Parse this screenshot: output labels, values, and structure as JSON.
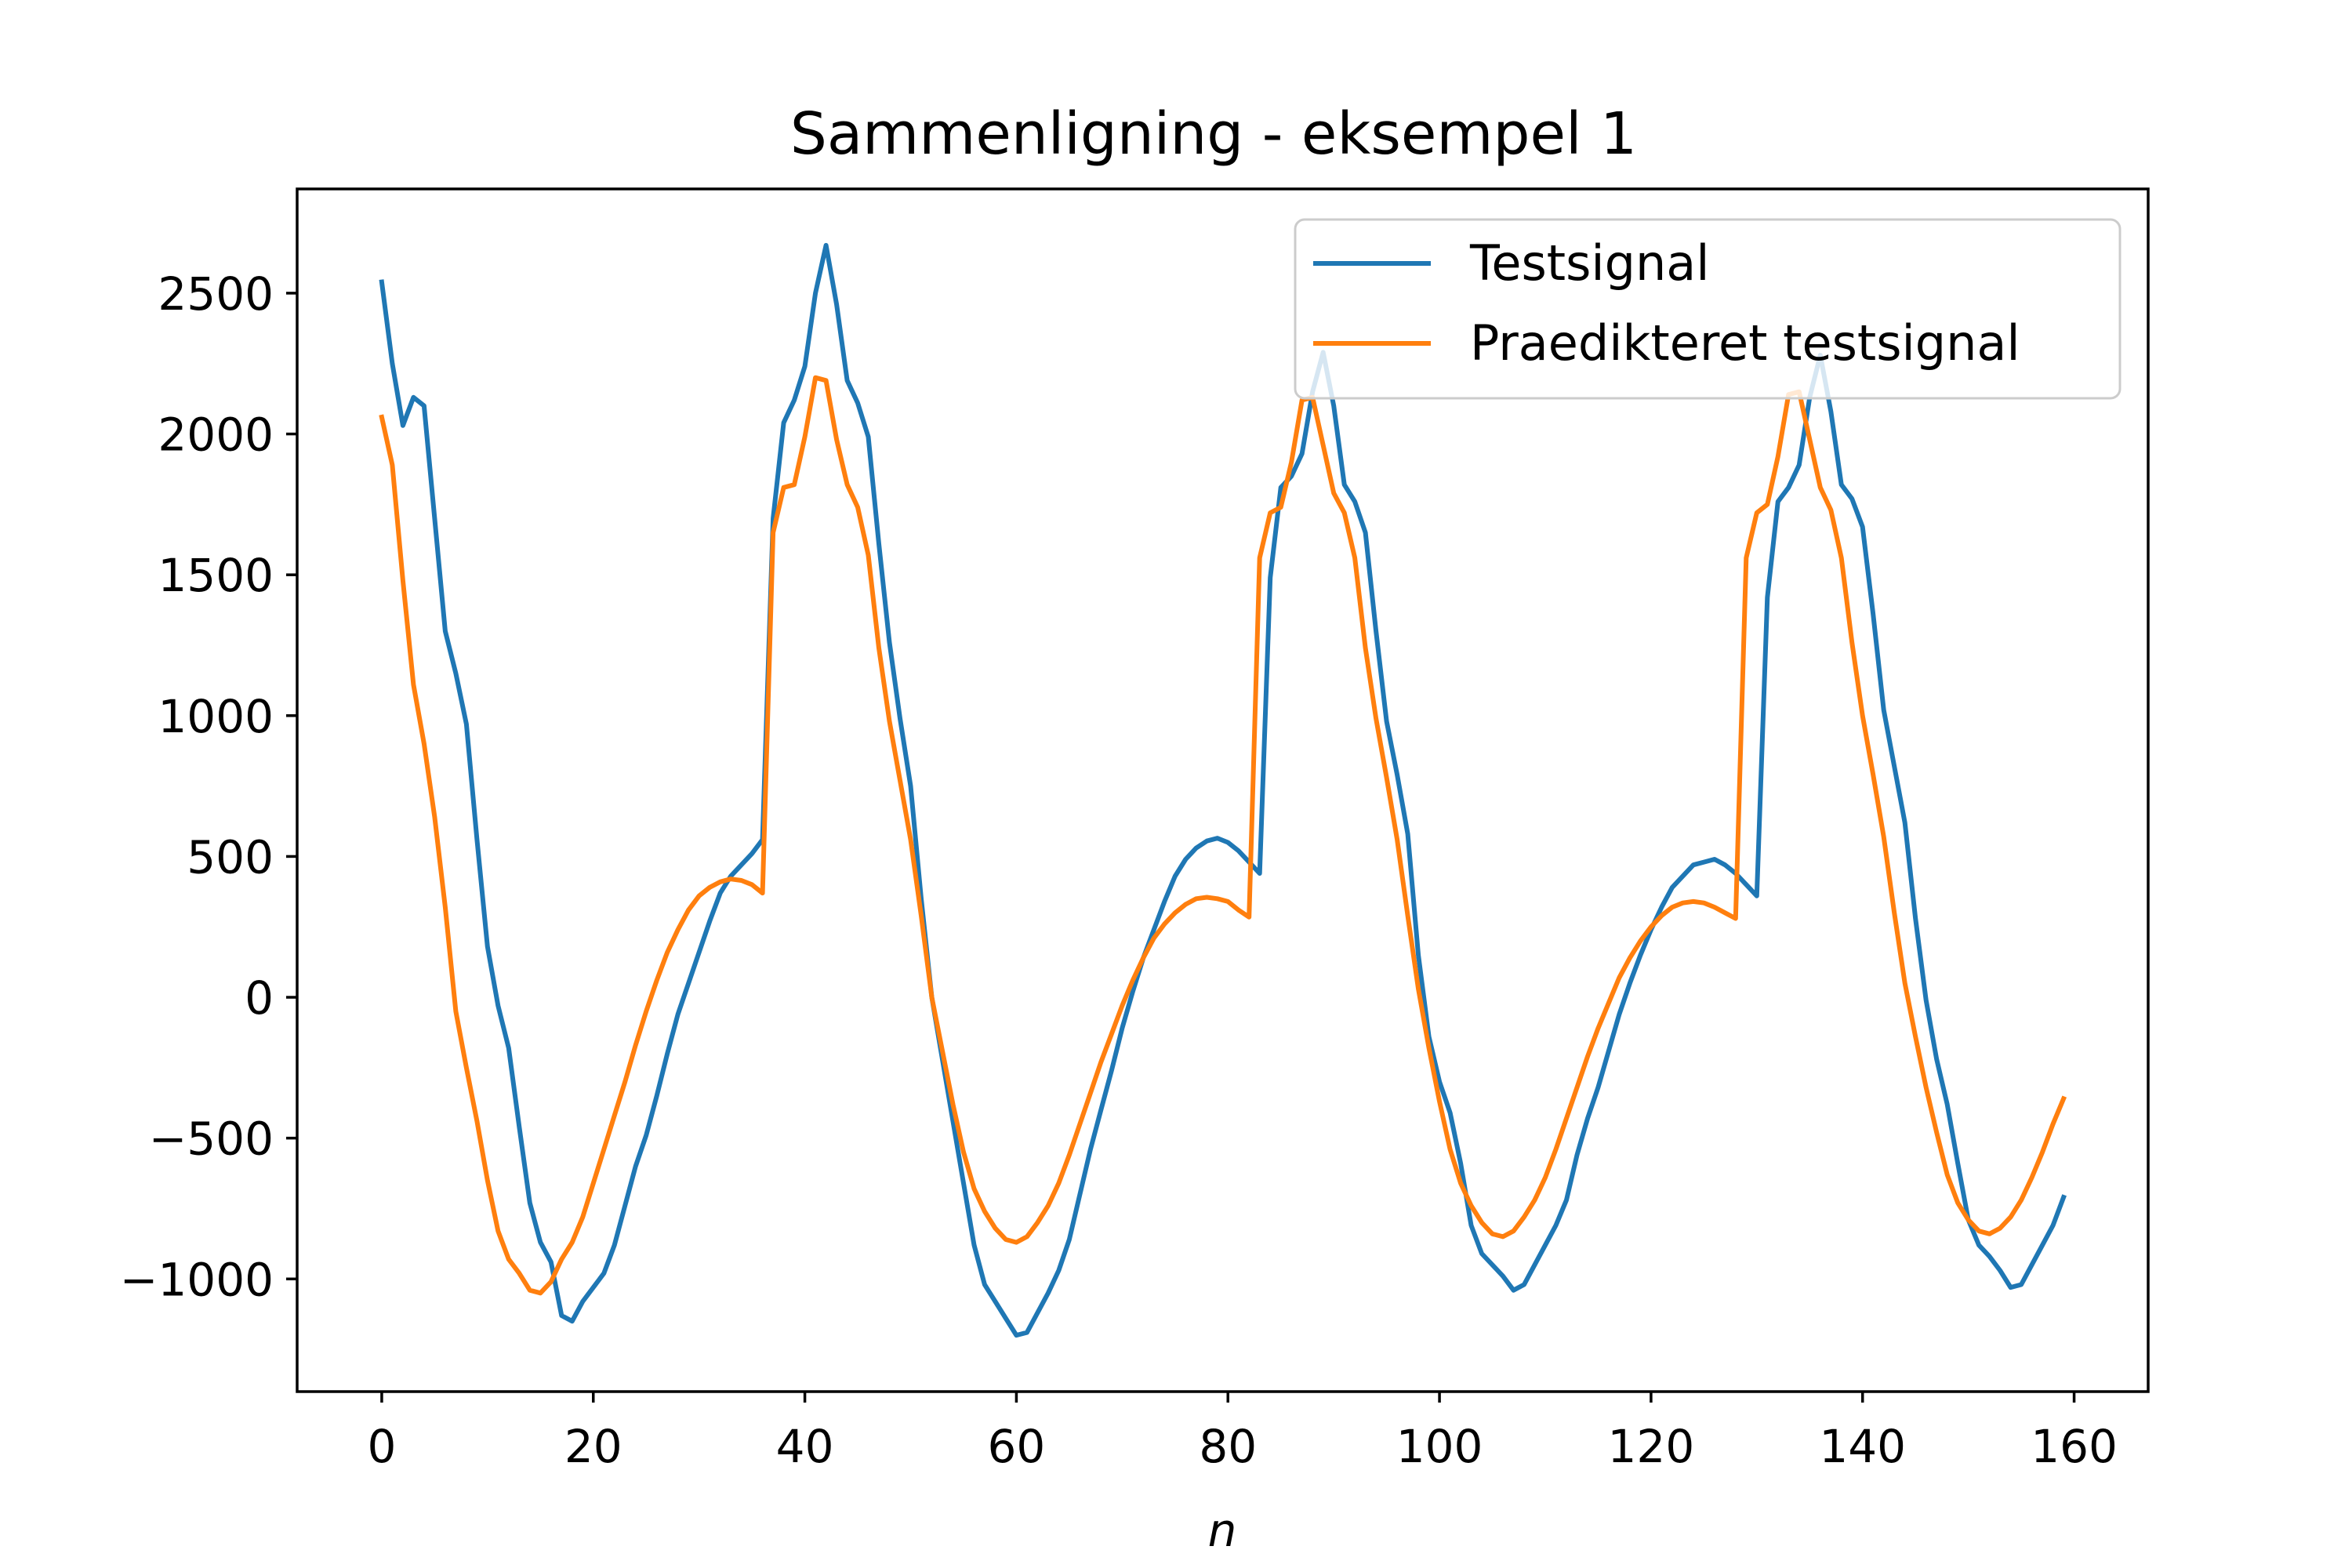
{
  "chart_data": {
    "type": "line",
    "title": "Sammenligning - eksempel 1",
    "xlabel": "n",
    "ylabel": "",
    "xlim": [
      -8,
      167
    ],
    "ylim": [
      -1400,
      2870
    ],
    "xticks": [
      0,
      20,
      40,
      60,
      80,
      100,
      120,
      140,
      160
    ],
    "yticks": [
      -1000,
      -500,
      0,
      500,
      1000,
      1500,
      2000,
      2500
    ],
    "legend": "upper-right",
    "series": [
      {
        "name": "Testsignal",
        "color": "#1f77b4",
        "points": [
          [
            0,
            2540
          ],
          [
            1,
            2250
          ],
          [
            2,
            2030
          ],
          [
            3,
            2130
          ],
          [
            4,
            2100
          ],
          [
            5,
            1700
          ],
          [
            6,
            1300
          ],
          [
            7,
            1150
          ],
          [
            8,
            970
          ],
          [
            9,
            560
          ],
          [
            10,
            180
          ],
          [
            11,
            -30
          ],
          [
            12,
            -180
          ],
          [
            13,
            -460
          ],
          [
            14,
            -730
          ],
          [
            15,
            -870
          ],
          [
            16,
            -940
          ],
          [
            17,
            -1130
          ],
          [
            18,
            -1150
          ],
          [
            19,
            -1080
          ],
          [
            20,
            -1030
          ],
          [
            21,
            -980
          ],
          [
            22,
            -880
          ],
          [
            23,
            -740
          ],
          [
            24,
            -600
          ],
          [
            25,
            -490
          ],
          [
            26,
            -350
          ],
          [
            27,
            -200
          ],
          [
            28,
            -60
          ],
          [
            29,
            50
          ],
          [
            30,
            160
          ],
          [
            31,
            270
          ],
          [
            32,
            370
          ],
          [
            33,
            430
          ],
          [
            34,
            470
          ],
          [
            35,
            510
          ],
          [
            36,
            560
          ],
          [
            37,
            1700
          ],
          [
            38,
            2040
          ],
          [
            39,
            2120
          ],
          [
            40,
            2240
          ],
          [
            41,
            2500
          ],
          [
            42,
            2670
          ],
          [
            43,
            2460
          ],
          [
            44,
            2190
          ],
          [
            45,
            2110
          ],
          [
            46,
            1990
          ],
          [
            47,
            1610
          ],
          [
            48,
            1260
          ],
          [
            49,
            990
          ],
          [
            50,
            750
          ],
          [
            51,
            350
          ],
          [
            52,
            0
          ],
          [
            53,
            -220
          ],
          [
            54,
            -440
          ],
          [
            55,
            -660
          ],
          [
            56,
            -880
          ],
          [
            57,
            -1020
          ],
          [
            58,
            -1080
          ],
          [
            59,
            -1140
          ],
          [
            60,
            -1200
          ],
          [
            61,
            -1190
          ],
          [
            62,
            -1120
          ],
          [
            63,
            -1050
          ],
          [
            64,
            -970
          ],
          [
            65,
            -860
          ],
          [
            66,
            -700
          ],
          [
            67,
            -540
          ],
          [
            68,
            -400
          ],
          [
            69,
            -260
          ],
          [
            70,
            -110
          ],
          [
            71,
            20
          ],
          [
            72,
            140
          ],
          [
            73,
            240
          ],
          [
            74,
            340
          ],
          [
            75,
            430
          ],
          [
            76,
            490
          ],
          [
            77,
            530
          ],
          [
            78,
            555
          ],
          [
            79,
            565
          ],
          [
            80,
            550
          ],
          [
            81,
            520
          ],
          [
            82,
            480
          ],
          [
            83,
            440
          ],
          [
            84,
            1490
          ],
          [
            85,
            1810
          ],
          [
            86,
            1850
          ],
          [
            87,
            1930
          ],
          [
            88,
            2150
          ],
          [
            89,
            2290
          ],
          [
            90,
            2100
          ],
          [
            91,
            1820
          ],
          [
            92,
            1760
          ],
          [
            93,
            1650
          ],
          [
            94,
            1300
          ],
          [
            95,
            980
          ],
          [
            96,
            790
          ],
          [
            97,
            580
          ],
          [
            98,
            150
          ],
          [
            99,
            -140
          ],
          [
            100,
            -300
          ],
          [
            101,
            -410
          ],
          [
            102,
            -590
          ],
          [
            103,
            -810
          ],
          [
            104,
            -910
          ],
          [
            105,
            -950
          ],
          [
            106,
            -990
          ],
          [
            107,
            -1040
          ],
          [
            108,
            -1020
          ],
          [
            109,
            -950
          ],
          [
            110,
            -880
          ],
          [
            111,
            -810
          ],
          [
            112,
            -720
          ],
          [
            113,
            -560
          ],
          [
            114,
            -430
          ],
          [
            115,
            -320
          ],
          [
            116,
            -190
          ],
          [
            117,
            -60
          ],
          [
            118,
            50
          ],
          [
            119,
            150
          ],
          [
            120,
            240
          ],
          [
            121,
            320
          ],
          [
            122,
            390
          ],
          [
            123,
            430
          ],
          [
            124,
            470
          ],
          [
            125,
            480
          ],
          [
            126,
            490
          ],
          [
            127,
            470
          ],
          [
            128,
            440
          ],
          [
            129,
            400
          ],
          [
            130,
            360
          ],
          [
            131,
            1420
          ],
          [
            132,
            1760
          ],
          [
            133,
            1810
          ],
          [
            134,
            1890
          ],
          [
            135,
            2130
          ],
          [
            136,
            2280
          ],
          [
            137,
            2080
          ],
          [
            138,
            1820
          ],
          [
            139,
            1770
          ],
          [
            140,
            1670
          ],
          [
            141,
            1360
          ],
          [
            142,
            1020
          ],
          [
            143,
            820
          ],
          [
            144,
            620
          ],
          [
            145,
            280
          ],
          [
            146,
            -10
          ],
          [
            147,
            -220
          ],
          [
            148,
            -380
          ],
          [
            149,
            -590
          ],
          [
            150,
            -790
          ],
          [
            151,
            -880
          ],
          [
            152,
            -920
          ],
          [
            153,
            -970
          ],
          [
            154,
            -1030
          ],
          [
            155,
            -1020
          ],
          [
            156,
            -950
          ],
          [
            157,
            -880
          ],
          [
            158,
            -810
          ],
          [
            159,
            -710
          ]
        ]
      },
      {
        "name": "Praedikteret testsignal",
        "color": "#ff7f0e",
        "points": [
          [
            0,
            2060
          ],
          [
            1,
            1890
          ],
          [
            2,
            1480
          ],
          [
            3,
            1110
          ],
          [
            4,
            900
          ],
          [
            5,
            640
          ],
          [
            6,
            320
          ],
          [
            7,
            -50
          ],
          [
            8,
            -250
          ],
          [
            9,
            -440
          ],
          [
            10,
            -650
          ],
          [
            11,
            -830
          ],
          [
            12,
            -930
          ],
          [
            13,
            -980
          ],
          [
            14,
            -1040
          ],
          [
            15,
            -1050
          ],
          [
            16,
            -1010
          ],
          [
            17,
            -930
          ],
          [
            18,
            -870
          ],
          [
            19,
            -780
          ],
          [
            20,
            -660
          ],
          [
            21,
            -540
          ],
          [
            22,
            -420
          ],
          [
            23,
            -300
          ],
          [
            24,
            -170
          ],
          [
            25,
            -50
          ],
          [
            26,
            60
          ],
          [
            27,
            160
          ],
          [
            28,
            240
          ],
          [
            29,
            310
          ],
          [
            30,
            360
          ],
          [
            31,
            390
          ],
          [
            32,
            410
          ],
          [
            33,
            420
          ],
          [
            34,
            415
          ],
          [
            35,
            400
          ],
          [
            36,
            370
          ],
          [
            37,
            1650
          ],
          [
            38,
            1810
          ],
          [
            39,
            1820
          ],
          [
            40,
            1990
          ],
          [
            41,
            2200
          ],
          [
            42,
            2190
          ],
          [
            43,
            1980
          ],
          [
            44,
            1820
          ],
          [
            45,
            1740
          ],
          [
            46,
            1570
          ],
          [
            47,
            1240
          ],
          [
            48,
            980
          ],
          [
            49,
            770
          ],
          [
            50,
            560
          ],
          [
            51,
            290
          ],
          [
            52,
            0
          ],
          [
            53,
            -190
          ],
          [
            54,
            -380
          ],
          [
            55,
            -550
          ],
          [
            56,
            -680
          ],
          [
            57,
            -760
          ],
          [
            58,
            -820
          ],
          [
            59,
            -860
          ],
          [
            60,
            -870
          ],
          [
            61,
            -850
          ],
          [
            62,
            -800
          ],
          [
            63,
            -740
          ],
          [
            64,
            -660
          ],
          [
            65,
            -560
          ],
          [
            66,
            -450
          ],
          [
            67,
            -340
          ],
          [
            68,
            -230
          ],
          [
            69,
            -130
          ],
          [
            70,
            -30
          ],
          [
            71,
            60
          ],
          [
            72,
            140
          ],
          [
            73,
            210
          ],
          [
            74,
            260
          ],
          [
            75,
            300
          ],
          [
            76,
            330
          ],
          [
            77,
            350
          ],
          [
            78,
            355
          ],
          [
            79,
            350
          ],
          [
            80,
            340
          ],
          [
            81,
            310
          ],
          [
            82,
            285
          ],
          [
            83,
            1560
          ],
          [
            84,
            1720
          ],
          [
            85,
            1740
          ],
          [
            86,
            1900
          ],
          [
            87,
            2120
          ],
          [
            88,
            2130
          ],
          [
            89,
            1960
          ],
          [
            90,
            1790
          ],
          [
            91,
            1720
          ],
          [
            92,
            1560
          ],
          [
            93,
            1240
          ],
          [
            94,
            990
          ],
          [
            95,
            780
          ],
          [
            96,
            560
          ],
          [
            97,
            290
          ],
          [
            98,
            30
          ],
          [
            99,
            -180
          ],
          [
            100,
            -370
          ],
          [
            101,
            -540
          ],
          [
            102,
            -660
          ],
          [
            103,
            -740
          ],
          [
            104,
            -800
          ],
          [
            105,
            -840
          ],
          [
            106,
            -850
          ],
          [
            107,
            -830
          ],
          [
            108,
            -780
          ],
          [
            109,
            -720
          ],
          [
            110,
            -640
          ],
          [
            111,
            -540
          ],
          [
            112,
            -430
          ],
          [
            113,
            -320
          ],
          [
            114,
            -210
          ],
          [
            115,
            -110
          ],
          [
            116,
            -20
          ],
          [
            117,
            70
          ],
          [
            118,
            140
          ],
          [
            119,
            200
          ],
          [
            120,
            250
          ],
          [
            121,
            290
          ],
          [
            122,
            320
          ],
          [
            123,
            335
          ],
          [
            124,
            340
          ],
          [
            125,
            335
          ],
          [
            126,
            320
          ],
          [
            127,
            300
          ],
          [
            128,
            280
          ],
          [
            129,
            1560
          ],
          [
            130,
            1720
          ],
          [
            131,
            1750
          ],
          [
            132,
            1920
          ],
          [
            133,
            2140
          ],
          [
            134,
            2150
          ],
          [
            135,
            1980
          ],
          [
            136,
            1810
          ],
          [
            137,
            1730
          ],
          [
            138,
            1560
          ],
          [
            139,
            1260
          ],
          [
            140,
            1000
          ],
          [
            141,
            790
          ],
          [
            142,
            570
          ],
          [
            143,
            300
          ],
          [
            144,
            50
          ],
          [
            145,
            -140
          ],
          [
            146,
            -320
          ],
          [
            147,
            -480
          ],
          [
            148,
            -630
          ],
          [
            149,
            -730
          ],
          [
            150,
            -790
          ],
          [
            151,
            -830
          ],
          [
            152,
            -840
          ],
          [
            153,
            -820
          ],
          [
            154,
            -780
          ],
          [
            155,
            -720
          ],
          [
            156,
            -640
          ],
          [
            157,
            -550
          ],
          [
            158,
            -450
          ],
          [
            159,
            -360
          ]
        ]
      }
    ]
  }
}
